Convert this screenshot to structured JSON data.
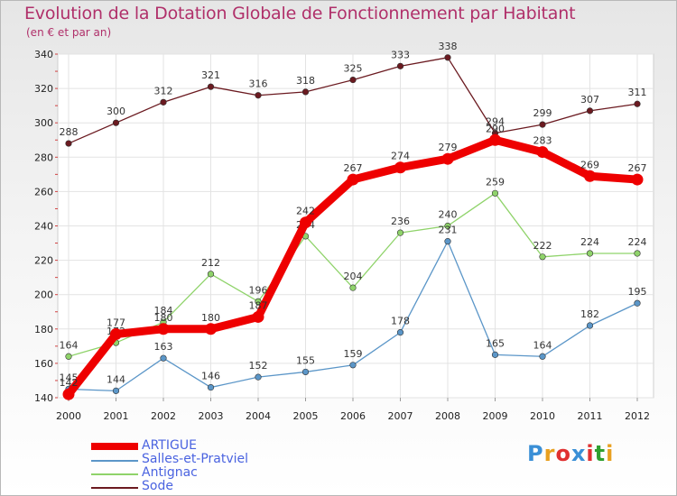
{
  "header": {
    "title": "Evolution de la Dotation Globale de Fonctionnement par Habitant",
    "subtitle": "(en € et par an)"
  },
  "logo": {
    "text": "Proxiti",
    "colors": [
      "#3a8fd6",
      "#e8a020",
      "#e03030",
      "#3a8fd6",
      "#e03030",
      "#30a030",
      "#e8a020"
    ]
  },
  "chart_data": {
    "type": "line",
    "title": "Evolution de la Dotation Globale de Fonctionnement par Habitant",
    "subtitle": "(en € et par an)",
    "xlabel": "",
    "ylabel": "",
    "ylim": [
      140,
      340
    ],
    "yticks": [
      140,
      160,
      180,
      200,
      220,
      240,
      260,
      280,
      300,
      320,
      340
    ],
    "categories": [
      "2000",
      "2001",
      "2002",
      "2003",
      "2004",
      "2005",
      "2006",
      "2007",
      "2008",
      "2009",
      "2010",
      "2011",
      "2012"
    ],
    "grid": true,
    "legend_position": "bottom-left",
    "series": [
      {
        "name": "Sode",
        "color": "#6b1a20",
        "emphasis": false,
        "values": [
          288,
          300,
          312,
          321,
          316,
          318,
          325,
          333,
          338,
          294,
          299,
          307,
          311
        ]
      },
      {
        "name": "Antignac",
        "color": "#8fd36a",
        "emphasis": false,
        "values": [
          164,
          172,
          184,
          212,
          196,
          234,
          204,
          236,
          240,
          259,
          222,
          224,
          224
        ]
      },
      {
        "name": "Salles-et-Pratviel",
        "color": "#5b96c8",
        "emphasis": false,
        "values": [
          145,
          144,
          163,
          146,
          152,
          155,
          159,
          178,
          231,
          165,
          164,
          182,
          195
        ]
      },
      {
        "name": "ARTIGUE",
        "color": "#ee0000",
        "emphasis": true,
        "values": [
          142,
          177,
          180,
          180,
          187,
          242,
          267,
          274,
          279,
          290,
          283,
          269,
          267
        ]
      }
    ],
    "legend_order": [
      "ARTIGUE",
      "Salles-et-Pratviel",
      "Antignac",
      "Sode"
    ]
  }
}
